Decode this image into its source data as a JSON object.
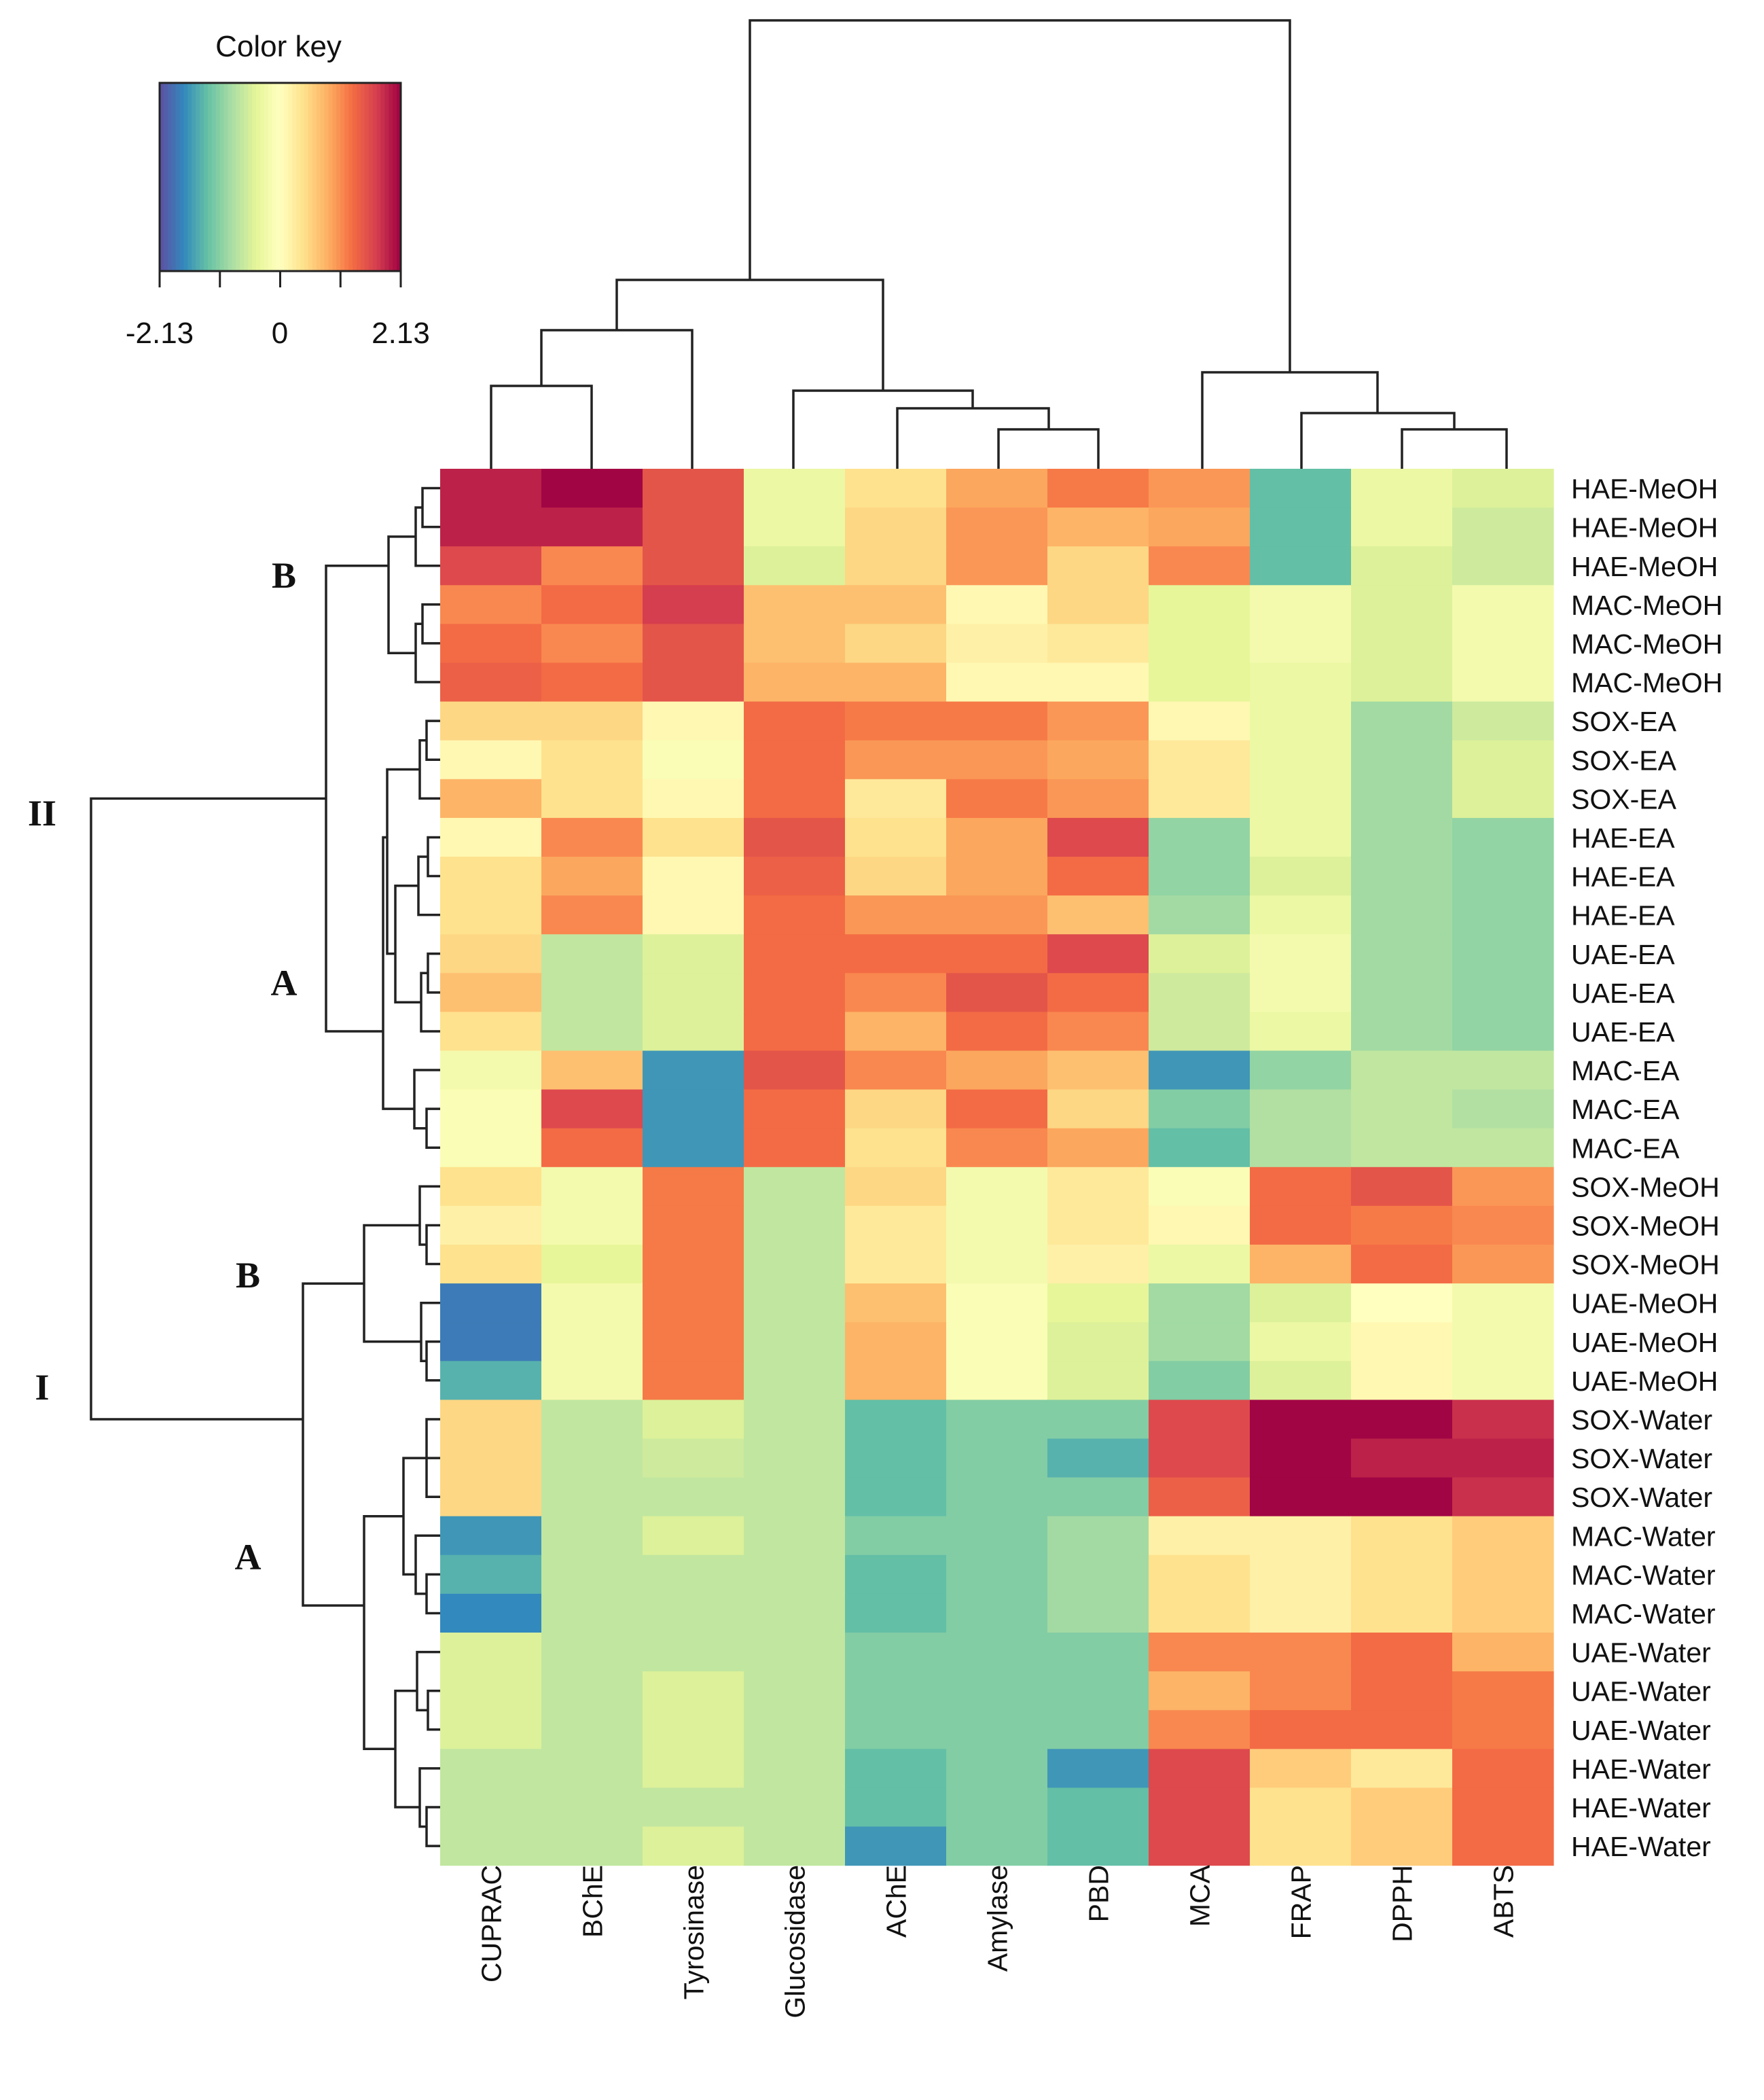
{
  "chart_data": {
    "type": "heatmap",
    "columns": [
      "CUPRAC",
      "BChE",
      "Tyrosinase",
      "Glucosidase",
      "AChE",
      "Amylase",
      "PBD",
      "MCA",
      "FRAP",
      "DPPH",
      "ABTS"
    ],
    "rows": [
      "HAE-MeOH",
      "HAE-MeOH",
      "HAE-MeOH",
      "MAC-MeOH",
      "MAC-MeOH",
      "MAC-MeOH",
      "SOX-EA",
      "SOX-EA",
      "SOX-EA",
      "HAE-EA",
      "HAE-EA",
      "HAE-EA",
      "UAE-EA",
      "UAE-EA",
      "UAE-EA",
      "MAC-EA",
      "MAC-EA",
      "MAC-EA",
      "SOX-MeOH",
      "SOX-MeOH",
      "SOX-MeOH",
      "UAE-MeOH",
      "UAE-MeOH",
      "UAE-MeOH",
      "SOX-Water",
      "SOX-Water",
      "SOX-Water",
      "MAC-Water",
      "MAC-Water",
      "MAC-Water",
      "UAE-Water",
      "UAE-Water",
      "UAE-Water",
      "HAE-Water",
      "HAE-Water",
      "HAE-Water"
    ],
    "values": [
      [
        1.9,
        2.1,
        1.5,
        -0.3,
        0.4,
        0.9,
        1.2,
        1.0,
        -1.3,
        -0.3,
        -0.5
      ],
      [
        1.9,
        1.9,
        1.5,
        -0.3,
        0.5,
        1.0,
        0.8,
        0.9,
        -1.3,
        -0.3,
        -0.6
      ],
      [
        1.6,
        1.1,
        1.5,
        -0.5,
        0.5,
        1.0,
        0.5,
        1.1,
        -1.3,
        -0.5,
        -0.6
      ],
      [
        1.1,
        1.3,
        1.7,
        0.7,
        0.7,
        0.1,
        0.5,
        -0.4,
        -0.2,
        -0.5,
        -0.2
      ],
      [
        1.3,
        1.1,
        1.5,
        0.7,
        0.5,
        0.2,
        0.3,
        -0.4,
        -0.2,
        -0.5,
        -0.2
      ],
      [
        1.4,
        1.3,
        1.5,
        0.8,
        0.8,
        0.1,
        0.1,
        -0.4,
        -0.3,
        -0.5,
        -0.2
      ],
      [
        0.5,
        0.5,
        0.1,
        1.3,
        1.2,
        1.2,
        1.0,
        0.1,
        -0.3,
        -0.9,
        -0.6
      ],
      [
        0.1,
        0.4,
        -0.1,
        1.3,
        1.0,
        1.0,
        0.9,
        0.3,
        -0.3,
        -0.9,
        -0.5
      ],
      [
        0.8,
        0.4,
        0.1,
        1.3,
        0.3,
        1.2,
        1.0,
        0.3,
        -0.3,
        -0.9,
        -0.5
      ],
      [
        0.1,
        1.1,
        0.4,
        1.5,
        0.4,
        0.9,
        1.6,
        -1.0,
        -0.3,
        -0.9,
        -1.0
      ],
      [
        0.4,
        0.9,
        0.1,
        1.4,
        0.5,
        0.9,
        1.3,
        -1.0,
        -0.5,
        -0.9,
        -1.0
      ],
      [
        0.4,
        1.1,
        0.1,
        1.3,
        1.0,
        1.0,
        0.7,
        -0.9,
        -0.3,
        -0.9,
        -1.0
      ],
      [
        0.5,
        -0.7,
        -0.5,
        1.3,
        1.3,
        1.3,
        1.6,
        -0.5,
        -0.2,
        -0.9,
        -1.0
      ],
      [
        0.7,
        -0.7,
        -0.5,
        1.3,
        1.1,
        1.5,
        1.3,
        -0.6,
        -0.2,
        -0.9,
        -1.0
      ],
      [
        0.4,
        -0.7,
        -0.5,
        1.3,
        0.8,
        1.3,
        1.1,
        -0.6,
        -0.3,
        -0.9,
        -1.0
      ],
      [
        -0.2,
        0.7,
        -1.6,
        1.5,
        1.1,
        0.9,
        0.7,
        -1.6,
        -1.0,
        -0.7,
        -0.7
      ],
      [
        -0.1,
        1.6,
        -1.6,
        1.3,
        0.5,
        1.3,
        0.5,
        -1.1,
        -0.8,
        -0.7,
        -0.8
      ],
      [
        -0.1,
        1.3,
        -1.6,
        1.3,
        0.4,
        1.1,
        0.9,
        -1.3,
        -0.8,
        -0.7,
        -0.7
      ],
      [
        0.4,
        -0.2,
        1.2,
        -0.7,
        0.5,
        -0.2,
        0.3,
        -0.1,
        1.3,
        1.5,
        1.0
      ],
      [
        0.2,
        -0.2,
        1.2,
        -0.7,
        0.3,
        -0.2,
        0.3,
        0.1,
        1.3,
        1.2,
        1.1
      ],
      [
        0.4,
        -0.4,
        1.2,
        -0.7,
        0.3,
        -0.2,
        0.2,
        -0.3,
        0.8,
        1.3,
        1.0
      ],
      [
        -1.8,
        -0.2,
        1.2,
        -0.7,
        0.7,
        -0.1,
        -0.4,
        -0.9,
        -0.5,
        0.0,
        -0.2
      ],
      [
        -1.8,
        -0.2,
        1.2,
        -0.7,
        0.8,
        -0.1,
        -0.5,
        -0.9,
        -0.3,
        0.1,
        -0.2
      ],
      [
        -1.4,
        -0.2,
        1.2,
        -0.7,
        0.8,
        -0.1,
        -0.5,
        -1.1,
        -0.5,
        0.1,
        -0.2
      ],
      [
        0.5,
        -0.7,
        -0.5,
        -0.7,
        -1.3,
        -1.1,
        -1.1,
        1.6,
        2.1,
        2.1,
        1.8
      ],
      [
        0.5,
        -0.7,
        -0.6,
        -0.7,
        -1.3,
        -1.1,
        -1.4,
        1.6,
        2.1,
        1.9,
        1.9
      ],
      [
        0.5,
        -0.7,
        -0.7,
        -0.7,
        -1.3,
        -1.1,
        -1.1,
        1.4,
        2.1,
        2.1,
        1.8
      ],
      [
        -1.6,
        -0.7,
        -0.5,
        -0.7,
        -1.1,
        -1.1,
        -0.9,
        0.2,
        0.2,
        0.4,
        0.6
      ],
      [
        -1.4,
        -0.7,
        -0.7,
        -0.7,
        -1.3,
        -1.1,
        -0.9,
        0.4,
        0.2,
        0.4,
        0.6
      ],
      [
        -1.7,
        -0.7,
        -0.7,
        -0.7,
        -1.3,
        -1.1,
        -0.9,
        0.4,
        0.2,
        0.4,
        0.6
      ],
      [
        -0.5,
        -0.7,
        -0.7,
        -0.7,
        -1.1,
        -1.1,
        -1.1,
        1.1,
        1.1,
        1.3,
        0.8
      ],
      [
        -0.5,
        -0.7,
        -0.5,
        -0.7,
        -1.1,
        -1.1,
        -1.1,
        0.8,
        1.1,
        1.3,
        1.2
      ],
      [
        -0.5,
        -0.7,
        -0.5,
        -0.7,
        -1.1,
        -1.1,
        -1.1,
        1.1,
        1.3,
        1.3,
        1.2
      ],
      [
        -0.7,
        -0.7,
        -0.5,
        -0.7,
        -1.3,
        -1.1,
        -1.6,
        1.6,
        0.6,
        0.3,
        1.3
      ],
      [
        -0.7,
        -0.7,
        -0.7,
        -0.7,
        -1.3,
        -1.1,
        -1.3,
        1.6,
        0.4,
        0.6,
        1.3
      ],
      [
        -0.7,
        -0.7,
        -0.5,
        -0.7,
        -1.6,
        -1.1,
        -1.3,
        1.6,
        0.4,
        0.6,
        1.3
      ]
    ],
    "color_key": {
      "title": "Color key",
      "tick_labels": [
        "-2.13",
        "0",
        "2.13"
      ],
      "range": [
        -2.13,
        2.13
      ],
      "palette": [
        "#5e4fa2",
        "#3288bd",
        "#66c2a5",
        "#abdda4",
        "#e6f598",
        "#ffffbf",
        "#fee08b",
        "#fdae61",
        "#f46d43",
        "#d53e4f",
        "#9e0142"
      ]
    },
    "row_cluster_labels": [
      {
        "label": "II",
        "rows": [
          0,
          17
        ]
      },
      {
        "label": "B",
        "rows": [
          0,
          5
        ]
      },
      {
        "label": "A",
        "rows": [
          6,
          17
        ]
      },
      {
        "label": "I",
        "rows": [
          18,
          35
        ]
      },
      {
        "label": "B",
        "rows": [
          18,
          23
        ]
      },
      {
        "label": "A",
        "rows": [
          24,
          35
        ]
      }
    ],
    "column_dendrogram": true,
    "row_dendrogram": true
  }
}
